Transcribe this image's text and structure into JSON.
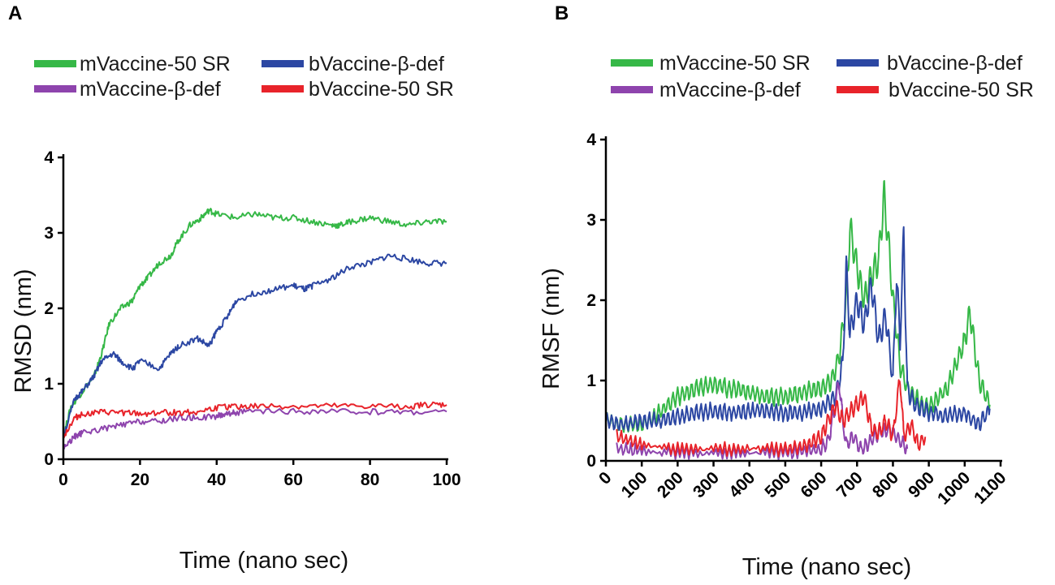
{
  "colors": {
    "green": "#36b847",
    "blue": "#2c47a3",
    "purple": "#8e44ad",
    "red": "#e8232a"
  },
  "chart_data": [
    {
      "panel": "A",
      "type": "line",
      "title": "",
      "xlabel": "Time (nano sec)",
      "ylabel": "RMSD (nm)",
      "xlim": [
        0,
        100
      ],
      "ylim": [
        0,
        4
      ],
      "xticks": [
        "0",
        "20",
        "40",
        "60",
        "80",
        "100"
      ],
      "yticks": [
        "0",
        "1",
        "2",
        "3",
        "4"
      ],
      "legend": [
        "mVaccine-50 SR",
        "bVaccine-β-def",
        "mVaccine-β-def",
        "bVaccine-50 SR"
      ],
      "series": [
        {
          "name": "mVaccine-50 SR",
          "color": "green",
          "x": [
            0,
            2,
            5,
            8,
            10,
            12,
            15,
            18,
            20,
            22,
            25,
            28,
            30,
            33,
            36,
            38,
            40,
            45,
            50,
            55,
            60,
            65,
            70,
            72,
            75,
            80,
            85,
            90,
            95,
            100
          ],
          "y": [
            0.3,
            0.7,
            0.9,
            1.1,
            1.4,
            1.8,
            2.0,
            2.1,
            2.3,
            2.4,
            2.6,
            2.7,
            2.9,
            3.1,
            3.2,
            3.3,
            3.25,
            3.2,
            3.25,
            3.2,
            3.2,
            3.15,
            3.1,
            3.1,
            3.15,
            3.2,
            3.15,
            3.1,
            3.15,
            3.15
          ]
        },
        {
          "name": "bVaccine-β-def",
          "color": "blue",
          "x": [
            0,
            3,
            5,
            8,
            10,
            13,
            15,
            18,
            20,
            25,
            28,
            30,
            35,
            38,
            40,
            43,
            45,
            50,
            55,
            60,
            63,
            65,
            70,
            75,
            80,
            85,
            90,
            95,
            100
          ],
          "y": [
            0.3,
            0.8,
            0.9,
            1.1,
            1.3,
            1.4,
            1.3,
            1.2,
            1.3,
            1.2,
            1.4,
            1.5,
            1.6,
            1.5,
            1.7,
            1.9,
            2.1,
            2.2,
            2.25,
            2.3,
            2.25,
            2.3,
            2.4,
            2.55,
            2.6,
            2.7,
            2.65,
            2.6,
            2.6
          ]
        },
        {
          "name": "mVaccine-β-def",
          "color": "purple",
          "x": [
            0,
            3,
            5,
            10,
            15,
            20,
            25,
            30,
            35,
            40,
            42,
            45,
            50,
            60,
            70,
            80,
            90,
            100
          ],
          "y": [
            0.15,
            0.3,
            0.35,
            0.4,
            0.45,
            0.5,
            0.5,
            0.55,
            0.55,
            0.57,
            0.6,
            0.62,
            0.63,
            0.63,
            0.63,
            0.63,
            0.63,
            0.63
          ]
        },
        {
          "name": "bVaccine-50 SR",
          "color": "red",
          "x": [
            0,
            3,
            5,
            10,
            15,
            20,
            25,
            30,
            35,
            40,
            45,
            50,
            60,
            70,
            80,
            90,
            95,
            100
          ],
          "y": [
            0.3,
            0.55,
            0.6,
            0.62,
            0.62,
            0.6,
            0.62,
            0.62,
            0.63,
            0.68,
            0.7,
            0.7,
            0.7,
            0.7,
            0.7,
            0.7,
            0.72,
            0.72
          ]
        }
      ]
    },
    {
      "panel": "B",
      "type": "line",
      "title": "",
      "xlabel": "Time (nano sec)",
      "ylabel": "RMSF (nm)",
      "xlim": [
        0,
        1100
      ],
      "ylim": [
        0,
        4
      ],
      "xticks": [
        "0",
        "100",
        "200",
        "300",
        "400",
        "500",
        "600",
        "700",
        "800",
        "900",
        "1000",
        "1100"
      ],
      "yticks": [
        "0",
        "1",
        "2",
        "3",
        "4"
      ],
      "legend": [
        "mVaccine-50 SR",
        "bVaccine-β-def",
        "mVaccine-β-def",
        "bVaccine-50 SR"
      ],
      "series": [
        {
          "name": "mVaccine-50 SR",
          "color": "green",
          "x": [
            0,
            50,
            100,
            150,
            200,
            250,
            300,
            350,
            400,
            450,
            500,
            550,
            600,
            630,
            650,
            670,
            680,
            700,
            720,
            740,
            760,
            775,
            790,
            800,
            820,
            840,
            860,
            880,
            900,
            950,
            1000,
            1015,
            1040,
            1070
          ],
          "y": [
            0.5,
            0.45,
            0.45,
            0.6,
            0.8,
            0.9,
            0.95,
            0.9,
            0.85,
            0.8,
            0.8,
            0.85,
            0.9,
            1.0,
            1.3,
            2.0,
            2.9,
            2.4,
            2.0,
            2.3,
            2.5,
            3.3,
            2.6,
            2.0,
            1.2,
            0.9,
            0.8,
            0.7,
            0.65,
            0.9,
            1.5,
            1.85,
            1.0,
            0.7
          ]
        },
        {
          "name": "bVaccine-β-def",
          "color": "blue",
          "x": [
            0,
            50,
            100,
            150,
            200,
            250,
            300,
            350,
            400,
            450,
            500,
            550,
            600,
            640,
            660,
            670,
            680,
            700,
            720,
            740,
            760,
            780,
            800,
            810,
            820,
            830,
            840,
            860,
            900,
            950,
            1000,
            1040,
            1070
          ],
          "y": [
            0.5,
            0.45,
            0.5,
            0.5,
            0.55,
            0.6,
            0.62,
            0.6,
            0.62,
            0.62,
            0.6,
            0.6,
            0.65,
            0.8,
            1.2,
            2.4,
            1.6,
            2.0,
            1.7,
            2.2,
            1.5,
            1.8,
            1.0,
            2.3,
            1.5,
            2.8,
            0.9,
            0.7,
            0.6,
            0.55,
            0.6,
            0.45,
            0.65
          ]
        },
        {
          "name": "mVaccine-β-def",
          "color": "purple",
          "x": [
            30,
            100,
            200,
            300,
            400,
            500,
            560,
            600,
            620,
            640,
            650,
            660,
            670,
            690,
            710,
            730,
            760,
            790,
            820,
            840
          ],
          "y": [
            0.15,
            0.12,
            0.1,
            0.1,
            0.1,
            0.1,
            0.12,
            0.15,
            0.25,
            0.7,
            1.0,
            0.5,
            0.2,
            0.3,
            0.15,
            0.2,
            0.35,
            0.4,
            0.25,
            0.15
          ]
        },
        {
          "name": "bVaccine-50 SR",
          "color": "red",
          "x": [
            30,
            100,
            200,
            300,
            400,
            500,
            560,
            600,
            620,
            640,
            660,
            680,
            700,
            720,
            740,
            760,
            780,
            800,
            820,
            830,
            850,
            870,
            890
          ],
          "y": [
            0.3,
            0.2,
            0.15,
            0.15,
            0.15,
            0.15,
            0.2,
            0.3,
            0.5,
            0.7,
            0.5,
            0.6,
            0.7,
            0.8,
            0.4,
            0.35,
            0.5,
            0.3,
            1.05,
            0.3,
            0.45,
            0.2,
            0.3
          ]
        }
      ]
    }
  ]
}
